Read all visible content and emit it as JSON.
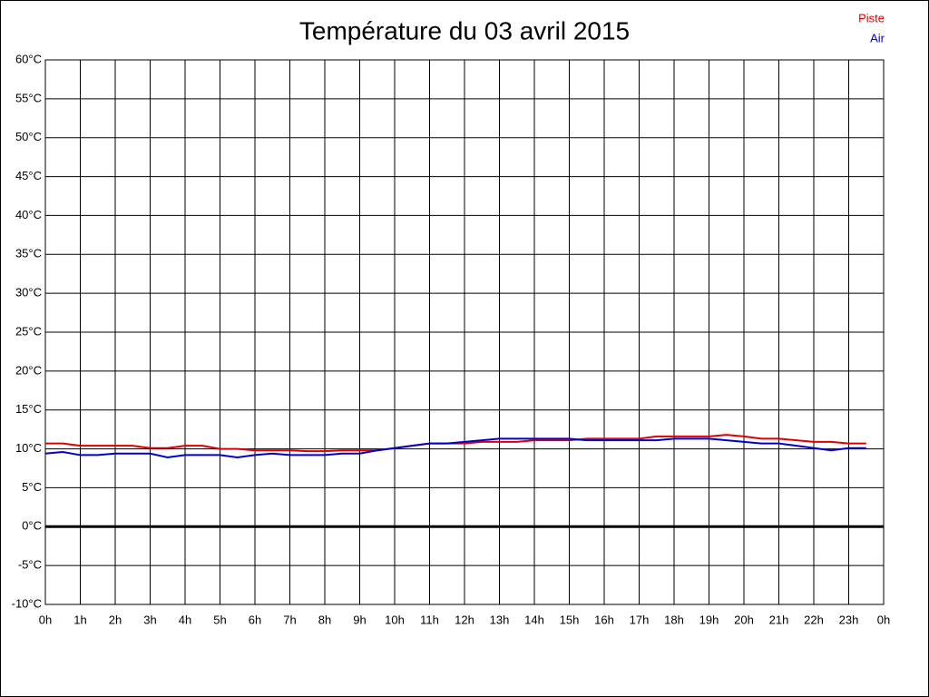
{
  "chart_data": {
    "type": "line",
    "title": "Température du 03 avril 2015",
    "x": [
      0,
      0.5,
      1,
      1.5,
      2,
      2.5,
      3,
      3.5,
      4,
      4.5,
      5,
      5.5,
      6,
      6.5,
      7,
      7.5,
      8,
      8.5,
      9,
      9.5,
      10,
      10.5,
      11,
      11.5,
      12,
      12.5,
      13,
      13.5,
      14,
      14.5,
      15,
      15.5,
      16,
      16.5,
      17,
      17.5,
      18,
      18.5,
      19,
      19.5,
      20,
      20.5,
      21,
      21.5,
      22,
      22.5,
      23,
      23.5
    ],
    "series": [
      {
        "name": "Piste",
        "color": "#dd0000",
        "values": [
          10.7,
          10.7,
          10.4,
          10.4,
          10.4,
          10.4,
          10.1,
          10.1,
          10.4,
          10.4,
          10.0,
          10.0,
          9.8,
          9.8,
          9.8,
          9.7,
          9.7,
          9.8,
          9.8,
          9.8,
          10.1,
          10.4,
          10.7,
          10.7,
          10.7,
          10.9,
          10.9,
          10.9,
          11.1,
          11.1,
          11.1,
          11.3,
          11.3,
          11.3,
          11.3,
          11.6,
          11.6,
          11.6,
          11.6,
          11.8,
          11.6,
          11.3,
          11.3,
          11.1,
          10.9,
          10.9,
          10.7,
          10.7
        ]
      },
      {
        "name": "Air",
        "color": "#0000cc",
        "values": [
          9.4,
          9.6,
          9.2,
          9.2,
          9.4,
          9.4,
          9.4,
          8.9,
          9.2,
          9.2,
          9.2,
          8.9,
          9.2,
          9.4,
          9.2,
          9.2,
          9.2,
          9.4,
          9.4,
          9.8,
          10.1,
          10.4,
          10.7,
          10.7,
          10.9,
          11.1,
          11.3,
          11.3,
          11.3,
          11.3,
          11.3,
          11.1,
          11.1,
          11.1,
          11.1,
          11.1,
          11.3,
          11.3,
          11.3,
          11.1,
          10.9,
          10.7,
          10.7,
          10.4,
          10.1,
          9.8,
          10.1,
          10.1
        ]
      }
    ],
    "xlim": [
      0,
      24
    ],
    "xticks": [
      {
        "value": 0,
        "label": "0h"
      },
      {
        "value": 1,
        "label": "1h"
      },
      {
        "value": 2,
        "label": "2h"
      },
      {
        "value": 3,
        "label": "3h"
      },
      {
        "value": 4,
        "label": "4h"
      },
      {
        "value": 5,
        "label": "5h"
      },
      {
        "value": 6,
        "label": "6h"
      },
      {
        "value": 7,
        "label": "7h"
      },
      {
        "value": 8,
        "label": "8h"
      },
      {
        "value": 9,
        "label": "9h"
      },
      {
        "value": 10,
        "label": "10h"
      },
      {
        "value": 11,
        "label": "11h"
      },
      {
        "value": 12,
        "label": "12h"
      },
      {
        "value": 13,
        "label": "13h"
      },
      {
        "value": 14,
        "label": "14h"
      },
      {
        "value": 15,
        "label": "15h"
      },
      {
        "value": 16,
        "label": "16h"
      },
      {
        "value": 17,
        "label": "17h"
      },
      {
        "value": 18,
        "label": "18h"
      },
      {
        "value": 19,
        "label": "19h"
      },
      {
        "value": 20,
        "label": "20h"
      },
      {
        "value": 21,
        "label": "21h"
      },
      {
        "value": 22,
        "label": "22h"
      },
      {
        "value": 23,
        "label": "23h"
      },
      {
        "value": 24,
        "label": "0h"
      }
    ],
    "ylim": [
      -10,
      60
    ],
    "yticks": [
      {
        "value": -10,
        "label": "-10°C"
      },
      {
        "value": -5,
        "label": "-5°C"
      },
      {
        "value": 0,
        "label": "0°C"
      },
      {
        "value": 5,
        "label": "5°C"
      },
      {
        "value": 10,
        "label": "10°C"
      },
      {
        "value": 15,
        "label": "15°C"
      },
      {
        "value": 20,
        "label": "20°C"
      },
      {
        "value": 25,
        "label": "25°C"
      },
      {
        "value": 30,
        "label": "30°C"
      },
      {
        "value": 35,
        "label": "35°C"
      },
      {
        "value": 40,
        "label": "40°C"
      },
      {
        "value": 45,
        "label": "45°C"
      },
      {
        "value": 50,
        "label": "50°C"
      },
      {
        "value": 55,
        "label": "55°C"
      },
      {
        "value": 60,
        "label": "60°C"
      }
    ],
    "grid": true,
    "zero_line": true,
    "legend": "top-right"
  }
}
